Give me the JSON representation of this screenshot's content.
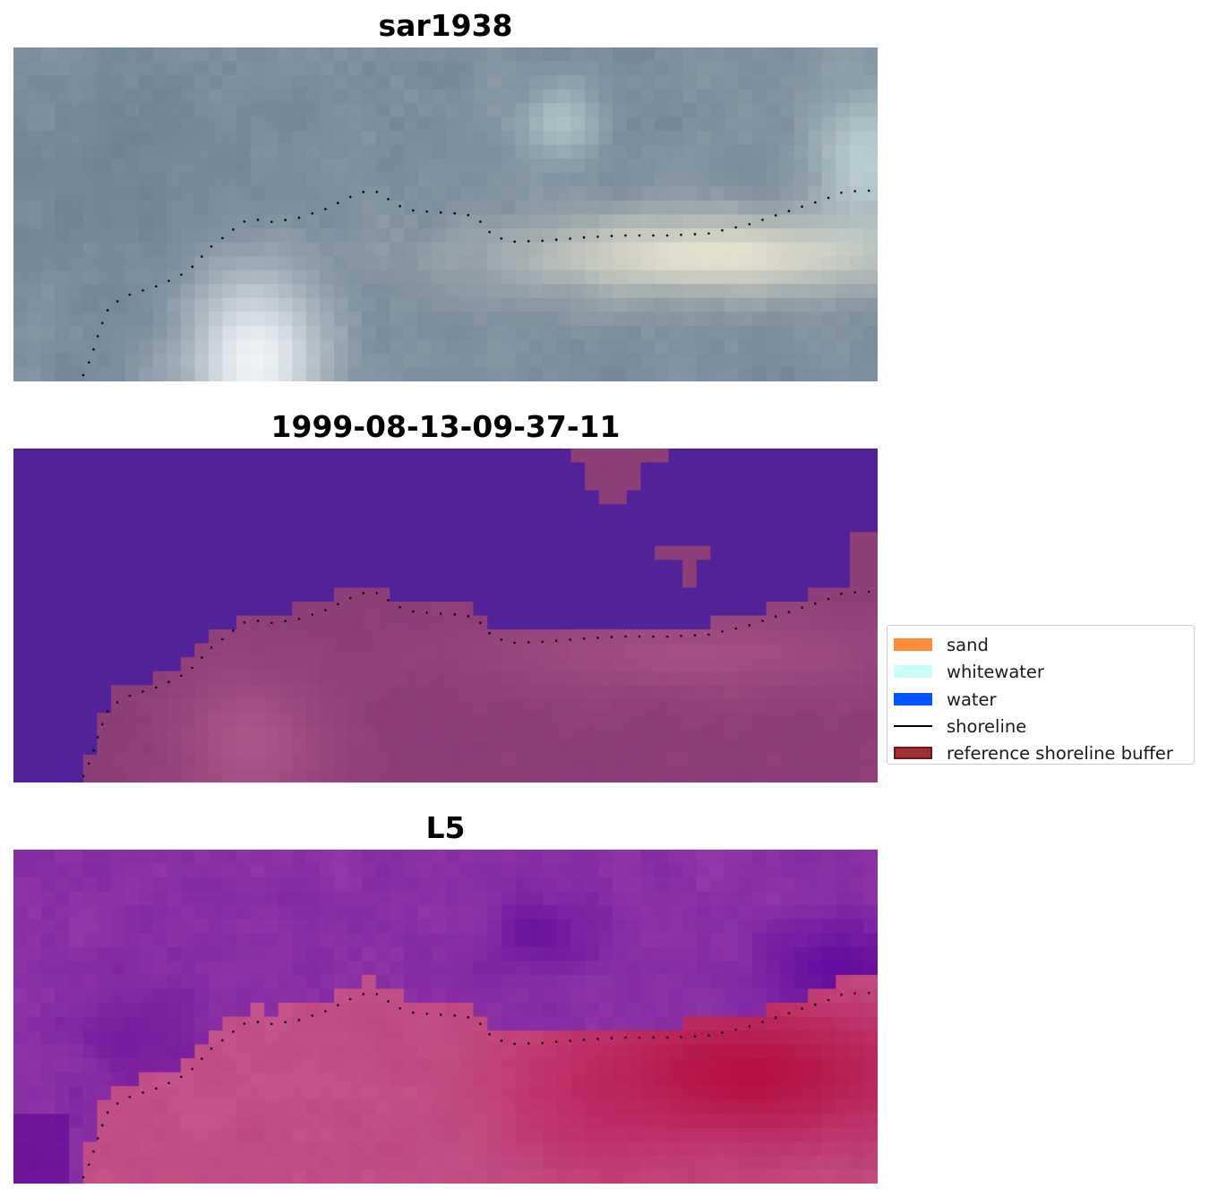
{
  "panels": [
    {
      "title": "sar1938",
      "style": "sar"
    },
    {
      "title": "1999-08-13-09-37-11",
      "style": "classified"
    },
    {
      "title": "L5",
      "style": "index"
    }
  ],
  "legend": {
    "items": [
      {
        "label": "sand",
        "kind": "patch",
        "color": "#ff8c3a",
        "edge": "none"
      },
      {
        "label": "whitewater",
        "kind": "patch",
        "color": "#c8fffb",
        "edge": "none"
      },
      {
        "label": "water",
        "kind": "patch",
        "color": "#0055ff",
        "edge": "none"
      },
      {
        "label": "shoreline",
        "kind": "line",
        "color": "#000000"
      },
      {
        "label": "reference shoreline buffer",
        "kind": "patch",
        "color": "#a03030",
        "edge": "#6a1a1a"
      }
    ]
  },
  "colors": {
    "shoreline_dots": "#000000",
    "classified_water": "#522299",
    "classified_land": "#8e3d74"
  }
}
